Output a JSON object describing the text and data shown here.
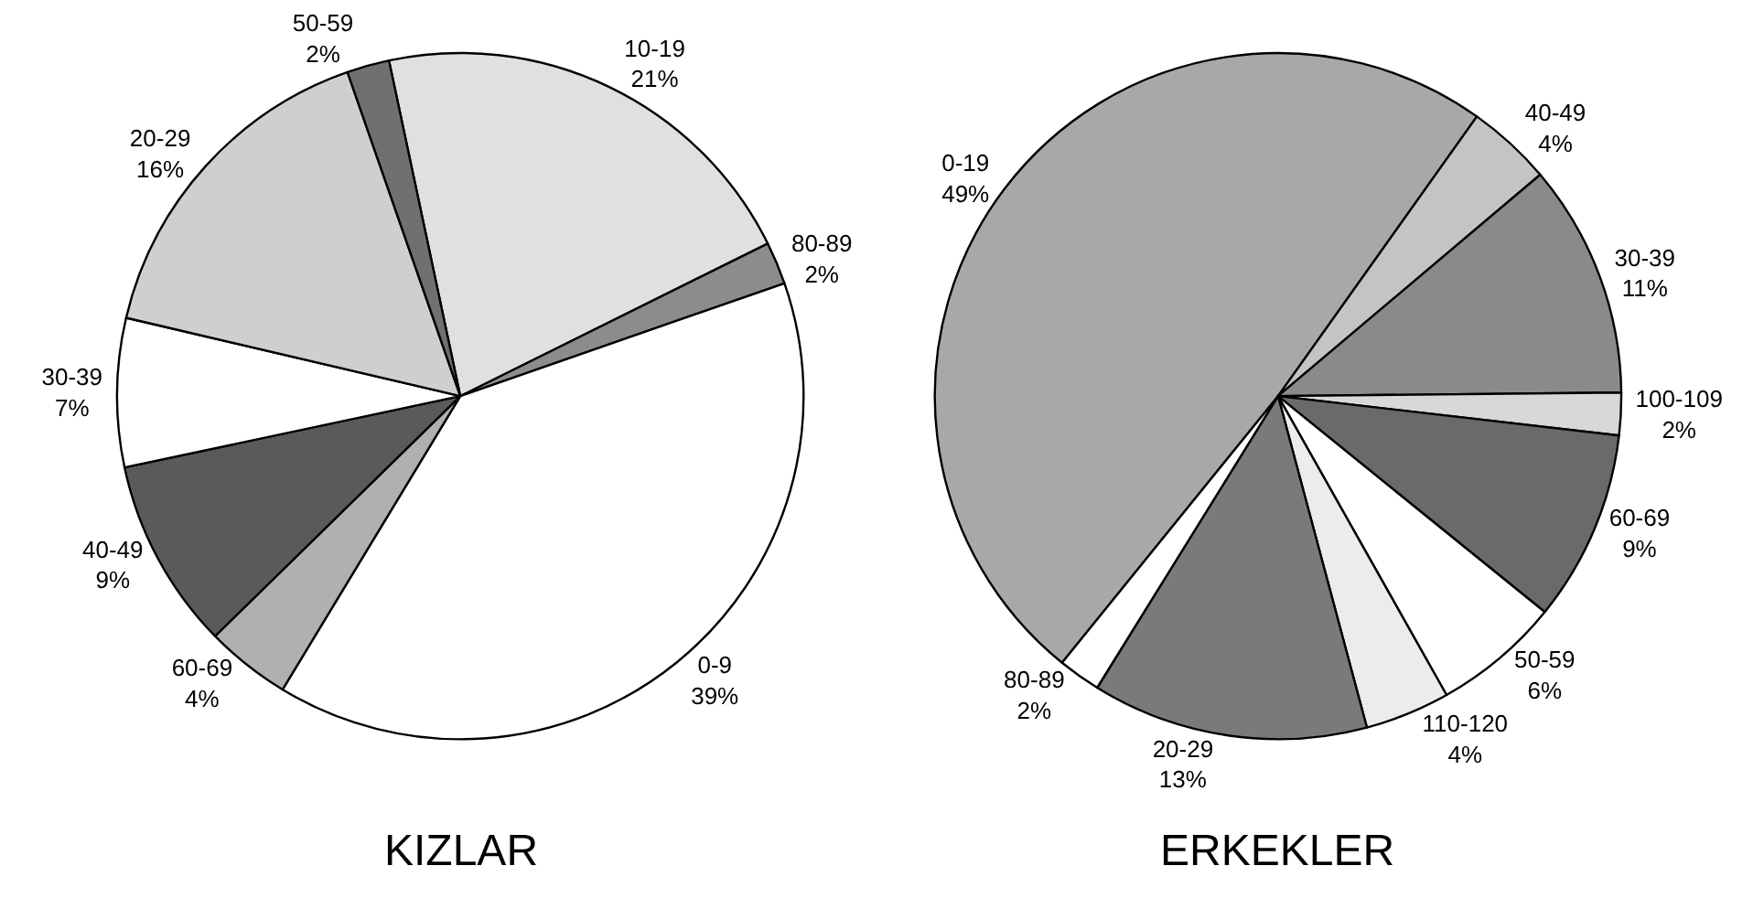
{
  "chart_data": [
    {
      "type": "pie",
      "title": "KIZLAR",
      "categories": [
        "10-19",
        "80-89",
        "0-9",
        "60-69",
        "40-49",
        "30-39",
        "20-29",
        "50-59"
      ],
      "values": [
        21,
        2,
        39,
        4,
        9,
        7,
        16,
        2
      ],
      "value_labels": [
        "21%",
        "2%",
        "39%",
        "4%",
        "9%",
        "7%",
        "16%",
        "2%"
      ],
      "colors": [
        "#e0e0e0",
        "#8c8c8c",
        "#ffffff",
        "#b0b0b0",
        "#5a5a5a",
        "#ffffff",
        "#cfcfcf",
        "#707070"
      ],
      "legend": false
    },
    {
      "type": "pie",
      "title": "ERKEKLER",
      "categories": [
        "0-19",
        "40-49",
        "30-39",
        "100-109",
        "60-69",
        "50-59",
        "110-120",
        "20-29",
        "80-89"
      ],
      "values": [
        49,
        4,
        11,
        2,
        9,
        6,
        4,
        13,
        2
      ],
      "value_labels": [
        "49%",
        "4%",
        "11%",
        "2%",
        "9%",
        "6%",
        "4%",
        "13%",
        "2%"
      ],
      "colors": [
        "#a8a8a8",
        "#c4c4c4",
        "#8a8a8a",
        "#d8d8d8",
        "#6a6a6a",
        "#ffffff",
        "#ececec",
        "#7a7a7a",
        "#ffffff"
      ],
      "legend": false
    }
  ]
}
